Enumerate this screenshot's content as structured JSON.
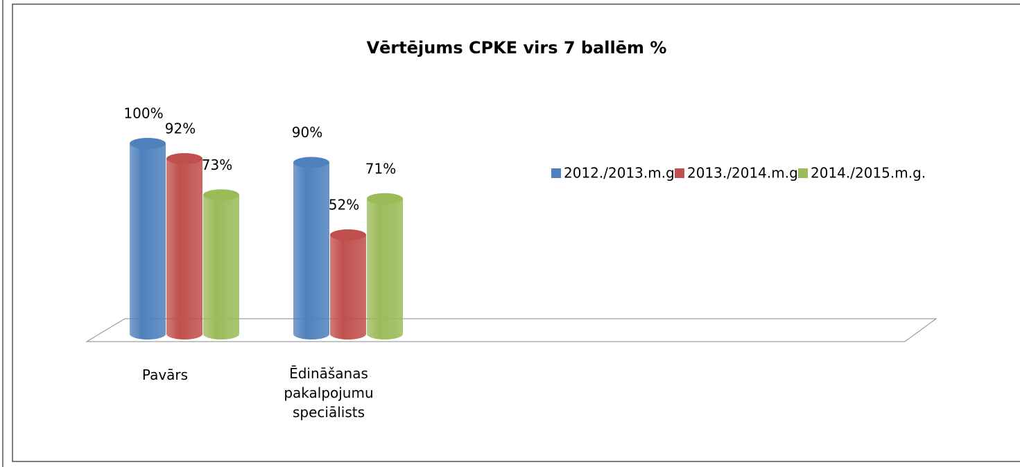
{
  "chart_data": {
    "type": "bar3d",
    "title": "Vērtējums CPKE virs 7 ballēm %",
    "categories": [
      "Pavārs",
      "Ēdināšanas pakalpojumu speciālists"
    ],
    "series": [
      {
        "name": "2012./2013.m.g.",
        "color": "#4f81bd",
        "values": [
          100,
          90
        ],
        "value_labels": [
          "100%",
          "90%"
        ]
      },
      {
        "name": "2013./2014.m.g.",
        "color": "#c0504d",
        "values": [
          92,
          52
        ],
        "value_labels": [
          "92%",
          "52%"
        ]
      },
      {
        "name": "2014./2015.m.g.",
        "color": "#9bbb59",
        "values": [
          73,
          71
        ],
        "value_labels": [
          "73%",
          "71%"
        ]
      }
    ],
    "legend": "right"
  }
}
